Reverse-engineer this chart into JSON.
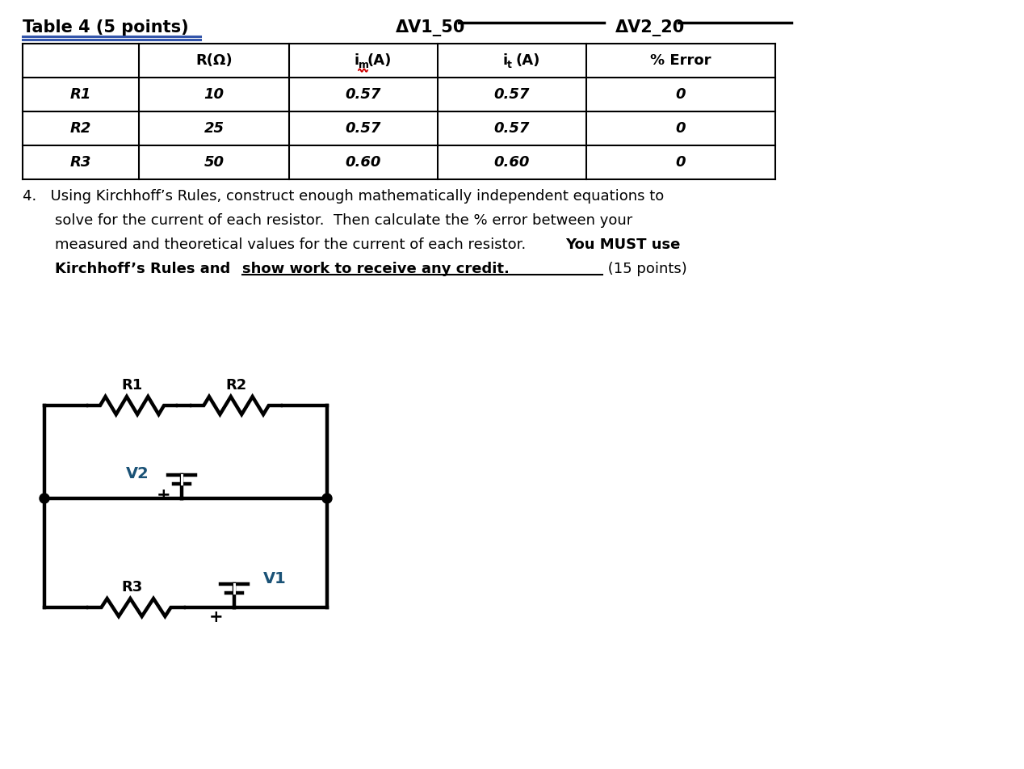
{
  "title": "Table 4 (5 points)",
  "header_right_1": "ΔV1_50",
  "header_right_2": "ΔV2_20",
  "table_headers": [
    "",
    "R(Ω)",
    "im(A)",
    "it(A)",
    "% Error"
  ],
  "table_rows": [
    [
      "R1",
      "10",
      "0.57",
      "0.57",
      "0"
    ],
    [
      "R2",
      "25",
      "0.57",
      "0.57",
      "0"
    ],
    [
      "R3",
      "50",
      "0.60",
      "0.60",
      "0"
    ]
  ],
  "circuit_label_R1": "R1",
  "circuit_label_R2": "R2",
  "circuit_label_R3": "R3",
  "circuit_label_V1": "V1",
  "circuit_label_V2": "V2",
  "label_color_V1": "#1a5276",
  "label_color_V2": "#1a5276",
  "bg_color": "#ffffff",
  "text_color": "#000000",
  "im_subscript_color": "#cc0000"
}
